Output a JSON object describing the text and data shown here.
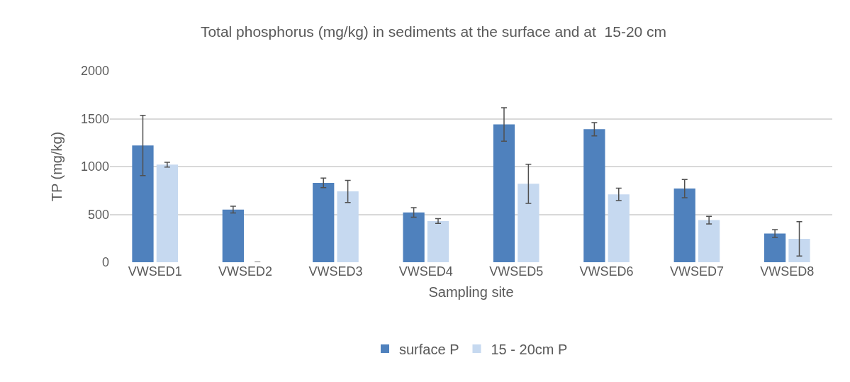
{
  "chart_data": {
    "type": "bar",
    "title": "Total phosphorus (mg/kg) in sediments at the surface and at  15-20 cm",
    "xlabel": "Sampling site",
    "ylabel": "TP (mg/kg)",
    "categories": [
      "VWSED1",
      "VWSED2",
      "VWSED3",
      "VWSED4",
      "VWSED5",
      "VWSED6",
      "VWSED7",
      "VWSED8"
    ],
    "series": [
      {
        "name": "surface P",
        "color": "#4f81bd",
        "values": [
          1220,
          550,
          830,
          520,
          1440,
          1390,
          770,
          300
        ],
        "errors": [
          315,
          35,
          50,
          50,
          175,
          70,
          95,
          40
        ]
      },
      {
        "name": "15 - 20cm P",
        "color": "#c6d9f0",
        "values": [
          1020,
          0,
          740,
          430,
          820,
          710,
          440,
          245
        ],
        "errors": [
          25,
          null,
          115,
          25,
          205,
          65,
          40,
          180
        ]
      }
    ],
    "ylim": [
      0,
      2000
    ],
    "yticks": [
      0,
      500,
      1000,
      1500,
      2000
    ],
    "grid": "y",
    "legend": "bottom"
  }
}
